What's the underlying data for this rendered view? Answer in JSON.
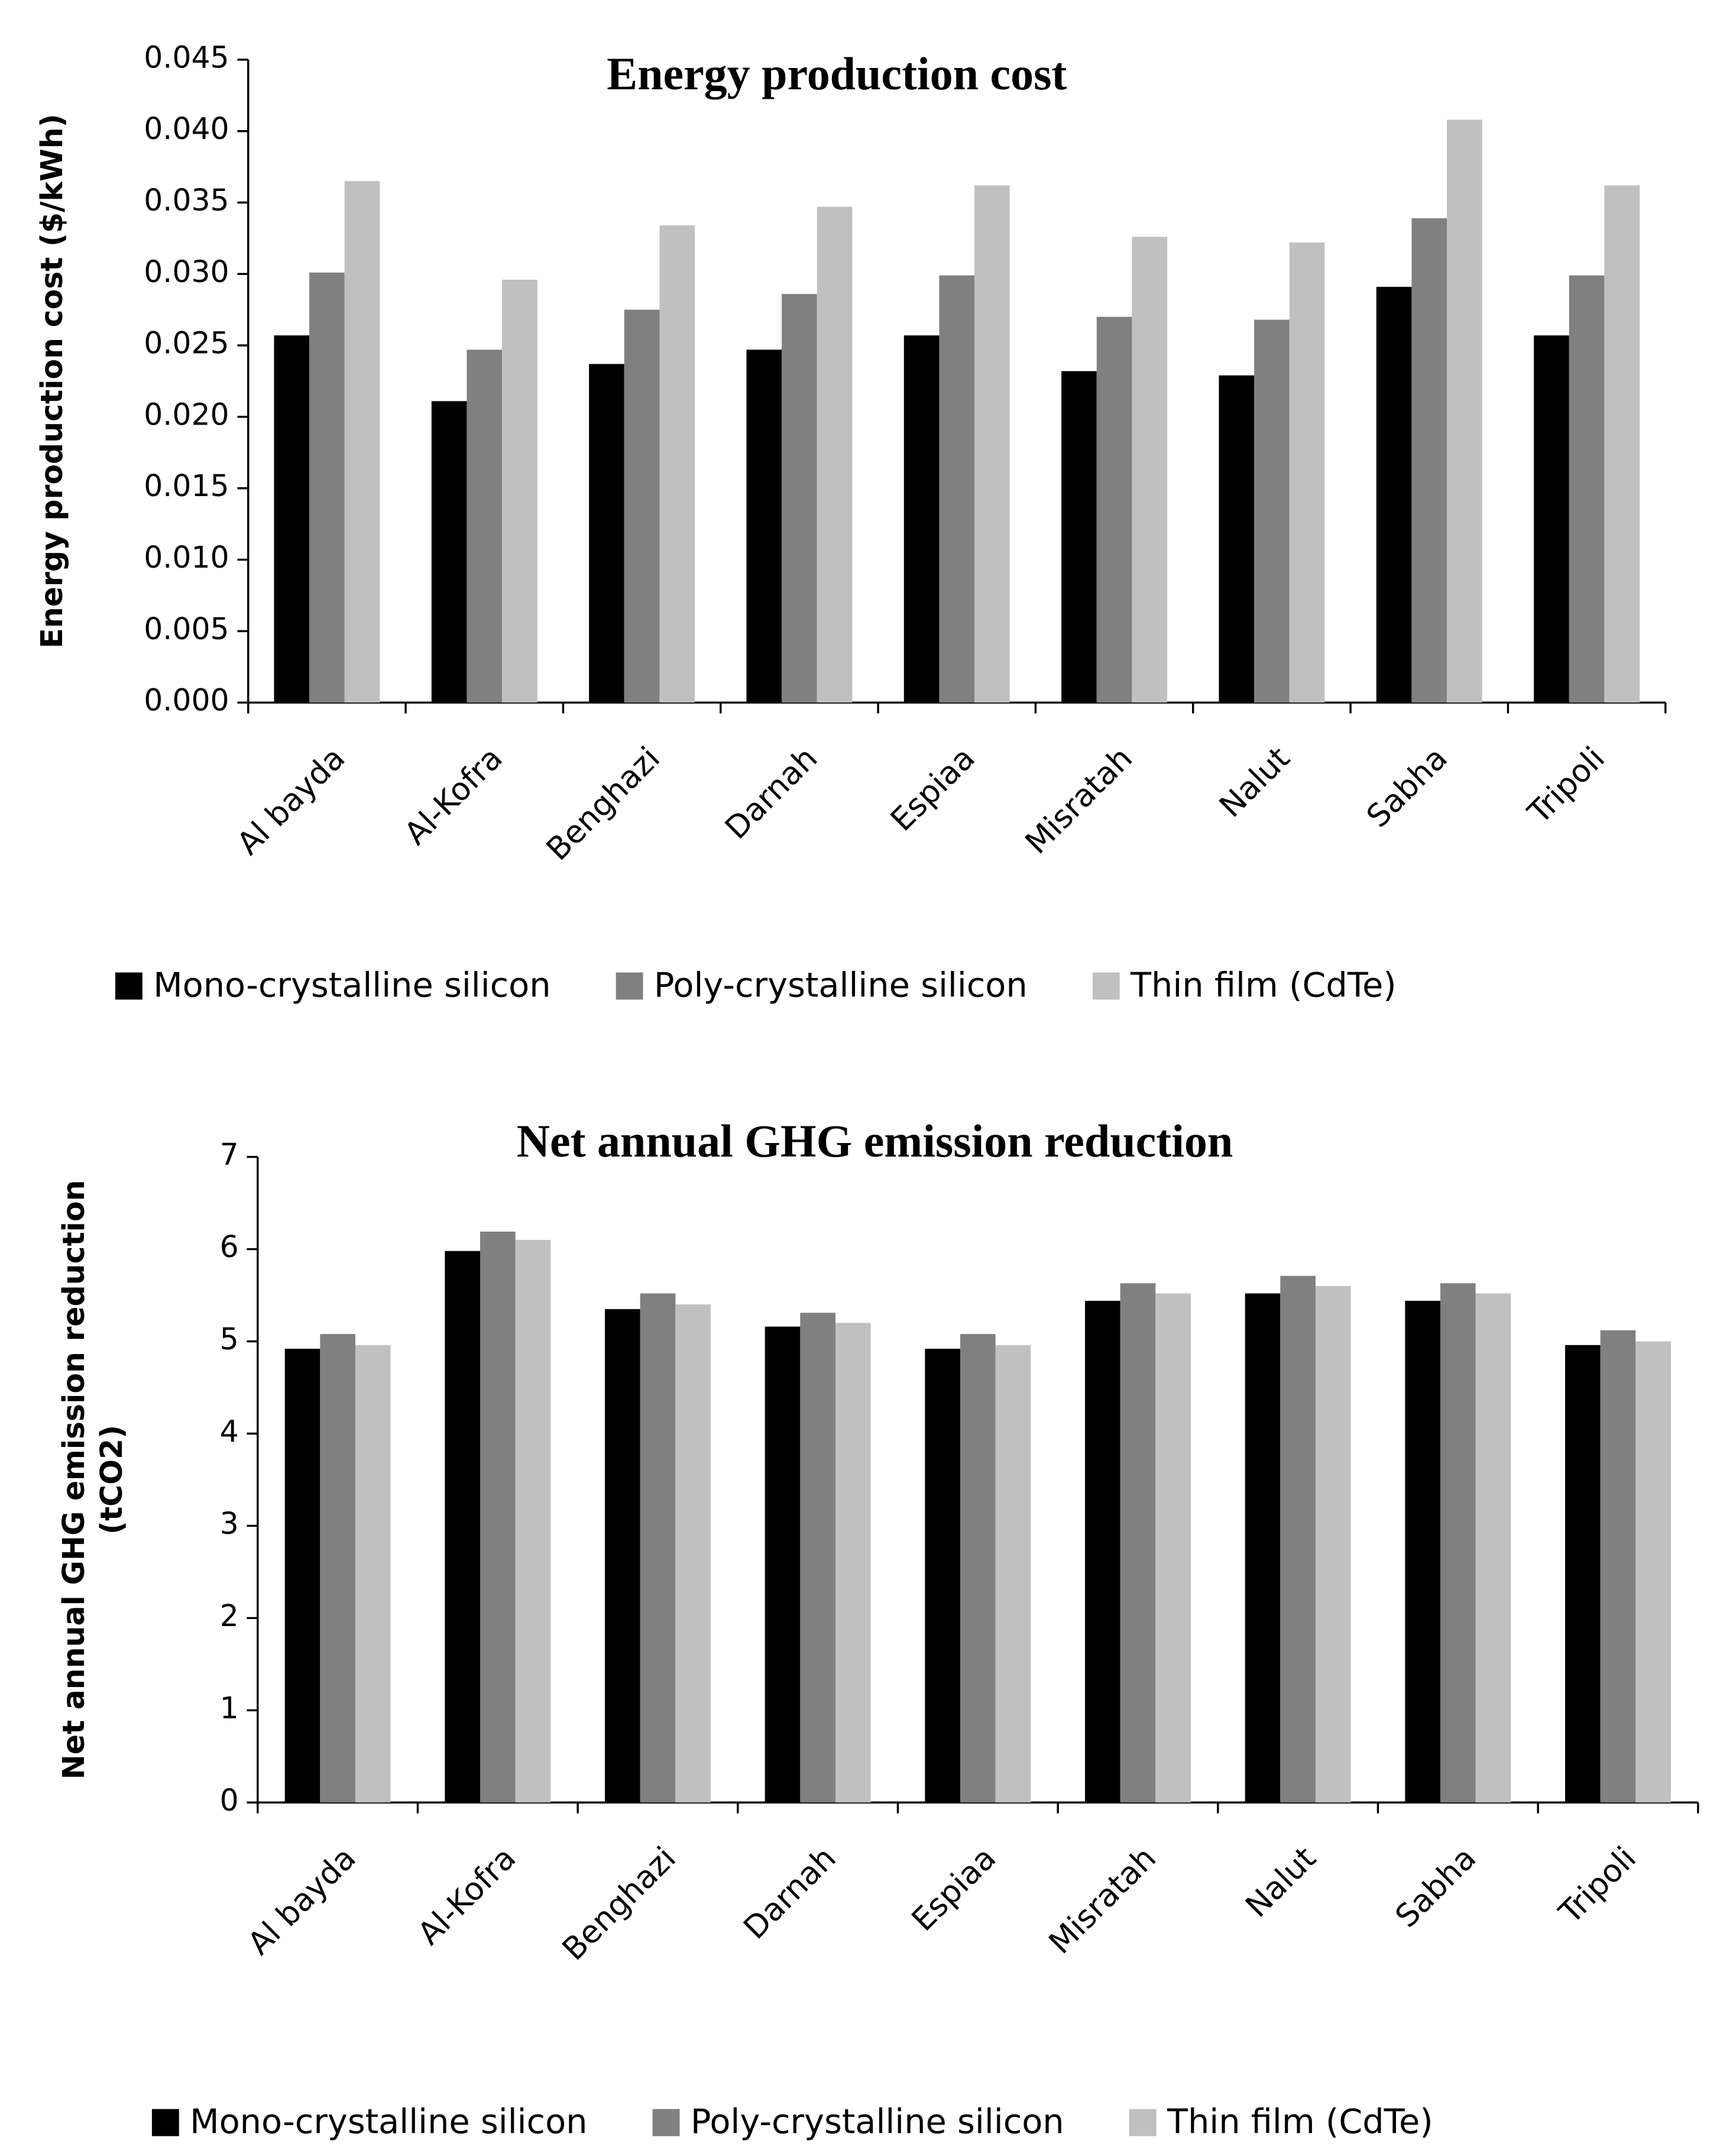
{
  "chart_data": [
    {
      "type": "bar",
      "title": "Energy production  cost",
      "ylabel": "Energy production cost ($/kWh)",
      "categories": [
        "Al bayda",
        "Al-Kofra",
        "Benghazi",
        "Darnah",
        "Espiaa",
        "Misratah",
        "Nalut",
        "Sabha",
        "Tripoli"
      ],
      "series": [
        {
          "name": "Mono-crystalline silicon",
          "color": "#000000",
          "values": [
            0.0257,
            0.0211,
            0.0237,
            0.0247,
            0.0257,
            0.0232,
            0.0229,
            0.0291,
            0.0257
          ]
        },
        {
          "name": "Poly-crystalline silicon",
          "color": "#808080",
          "values": [
            0.0301,
            0.0247,
            0.0275,
            0.0286,
            0.0299,
            0.027,
            0.0268,
            0.0339,
            0.0299
          ]
        },
        {
          "name": "Thin film (CdTe)",
          "color": "#c0c0c0",
          "values": [
            0.0365,
            0.0296,
            0.0334,
            0.0347,
            0.0362,
            0.0326,
            0.0322,
            0.0408,
            0.0362
          ]
        }
      ],
      "ylim": [
        0,
        0.045
      ],
      "yticks": [
        {
          "value": 0,
          "label": "0.000"
        },
        0.005,
        {
          "value": 0.01,
          "label": "0.010"
        },
        0.015,
        {
          "value": 0.02,
          "label": "0.020"
        },
        0.025,
        {
          "value": 0.03,
          "label": "0.030"
        },
        0.035,
        {
          "value": 0.04,
          "label": "0.040"
        },
        0.045
      ],
      "grid": false,
      "legend": "bottom"
    },
    {
      "type": "bar",
      "title": "Net  annual  GHG  emission  reduction",
      "ylabel": [
        "Net annual GHG emission  reduction",
        "(tCO2)"
      ],
      "categories": [
        "Al bayda",
        "Al-Kofra",
        "Benghazi",
        "Darnah",
        "Espiaa",
        "Misratah",
        "Nalut",
        "Sabha",
        "Tripoli"
      ],
      "series": [
        {
          "name": "Mono-crystalline silicon",
          "color": "#000000",
          "values": [
            4.92,
            5.98,
            5.35,
            5.16,
            4.92,
            5.44,
            5.52,
            5.44,
            4.96
          ]
        },
        {
          "name": "Poly-crystalline silicon",
          "color": "#808080",
          "values": [
            5.08,
            6.19,
            5.52,
            5.31,
            5.08,
            5.63,
            5.71,
            5.63,
            5.12
          ]
        },
        {
          "name": "Thin film (CdTe)",
          "color": "#c0c0c0",
          "values": [
            4.96,
            6.1,
            5.4,
            5.2,
            4.96,
            5.52,
            5.6,
            5.52,
            5.0
          ]
        }
      ],
      "ylim": [
        0,
        7
      ],
      "yticks": [
        0,
        1,
        2,
        3,
        4,
        5,
        6,
        7
      ],
      "grid": false,
      "legend": "bottom"
    }
  ]
}
